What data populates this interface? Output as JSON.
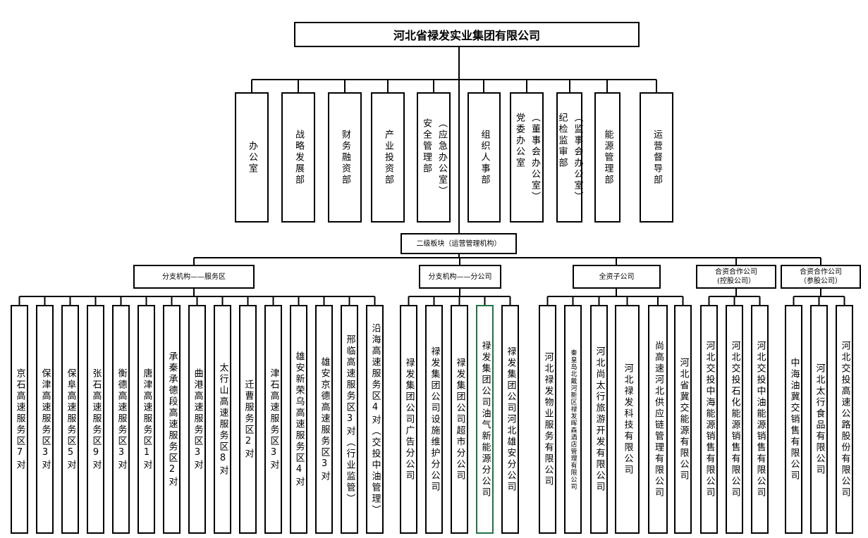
{
  "root": "河北省禄发实业集团有限公司",
  "departments": [
    "办公室",
    "战略发展部",
    "财务融资部",
    "产业投资部",
    "安全管理部\n（应急办公室）",
    "组织人事部",
    "党委办公室\n（董事会办公室）",
    "纪检监审部\n（监事会办公室）",
    "能源管理部",
    "运营督导部"
  ],
  "secondary": "二级板块（运营管理机构）",
  "groups": [
    {
      "label": "分支机构——服务区",
      "units": [
        "京石高速服务区7对",
        "保津高速服务区3对",
        "保阜高速服务区5对",
        "张石高速服务区9对",
        "衡德高速服务区3对",
        "唐津高速服务区1对",
        "承秦承德段高速服务区2对",
        "曲港高速服务区3对",
        "太行山高速服务区8对",
        "迁曹服务区2对",
        "津石高速服务区3对",
        "雄安新荣乌高速服务区4对",
        "雄安京德高速服务区3对",
        "邢临高速服务区3对（行业监管）",
        "沿海高速服务区4对（交投中油管理）"
      ]
    },
    {
      "label": "分支机构——分公司",
      "units": [
        "禄发集团公司广告分公司",
        "禄发集团公司设施维护分公司",
        "禄发集团公司超市分公司",
        "禄发集团公司油气新能源分公司",
        "禄发集团公司河北雄安分公司"
      ]
    },
    {
      "label": "全资子公司",
      "units": [
        "河北禄发物业服务有限公司",
        "秦皇岛北戴河新区禄发晖森酒店管理有限公司",
        "河北尚太行旅游开发有限公司",
        "河北禄发科技有限公司",
        "尚高速河北供应链管理有限公司",
        "河北省冀交能源有限公司"
      ]
    },
    {
      "label": "合资合作公司\n(控股公司）",
      "units": [
        "河北交投中海能源销售有限公司",
        "河北交投石化能源销售有限公司",
        "河北交投中油能源销售有限公司"
      ]
    },
    {
      "label": "合资合作公司\n（参股公司）",
      "units": [
        "中海油冀交销售有限公司",
        "河北太行食品有限公司",
        "河北交投高速公路股份有限公司"
      ]
    }
  ],
  "colors": {
    "line": "#000000",
    "selected_border": "#217346"
  }
}
